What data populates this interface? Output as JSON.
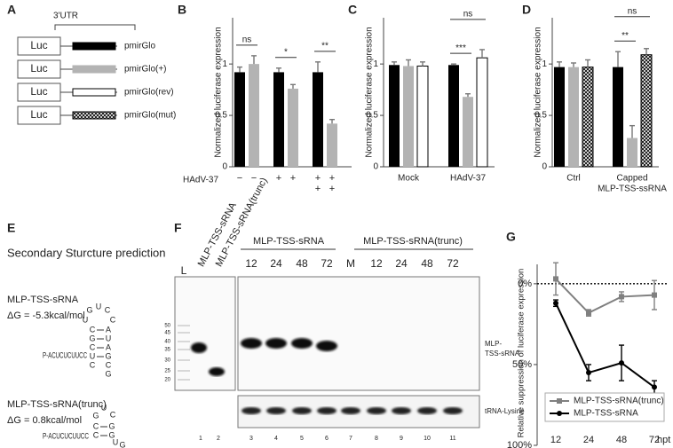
{
  "panel_labels": [
    "A",
    "B",
    "C",
    "D",
    "E",
    "F",
    "G"
  ],
  "constructs": {
    "header": "3'UTR",
    "rows": [
      {
        "reporter": "Luc",
        "name": "pmirGlo",
        "style": "filled",
        "color": "#000000"
      },
      {
        "reporter": "Luc",
        "name": "pmirGlo(+)",
        "style": "filled",
        "color": "#b3b3b3"
      },
      {
        "reporter": "Luc",
        "name": "pmirGlo(rev)",
        "style": "outline",
        "color": "#000000"
      },
      {
        "reporter": "Luc",
        "name": "pmirGlo(mut)",
        "style": "crosshatch",
        "color": "#000000"
      }
    ]
  },
  "chart_data": [
    {
      "type": "bar",
      "ylabel": "Normalized luciferase expression",
      "ylim": [
        0,
        1.45
      ],
      "yticks": [
        0,
        0.5,
        1
      ],
      "series": [
        {
          "color": "#000000",
          "values": [
            0.92,
            0.92,
            0.92
          ],
          "errors": [
            0.05,
            0.04,
            0.1
          ]
        },
        {
          "color": "#b3b3b3",
          "values": [
            1.0,
            0.76,
            0.42
          ],
          "errors": [
            0.08,
            0.04,
            0.04
          ]
        }
      ],
      "xlabel": "HAdV-37",
      "treatment_rows": [
        [
          "−",
          "−",
          "+",
          "+",
          "+",
          "+"
        ],
        [
          null,
          null,
          null,
          null,
          "+",
          "+"
        ]
      ],
      "annotations": [
        "ns",
        "*",
        "**"
      ]
    },
    {
      "type": "bar",
      "ylabel": "Normalized luciferase expression",
      "ylim": [
        0,
        1.45
      ],
      "yticks": [
        0,
        0.5,
        1
      ],
      "categories": [
        [
          "Mock"
        ],
        [
          "HAdV-37"
        ]
      ],
      "series": [
        {
          "color": "#000000",
          "values": [
            0.99,
            0.99
          ],
          "errors": [
            0.03,
            0.01
          ]
        },
        {
          "color": "#b3b3b3",
          "values": [
            0.98,
            0.68
          ],
          "errors": [
            0.06,
            0.03
          ]
        },
        {
          "color": "#ffffff",
          "edgecolor": "#000000",
          "values": [
            0.98,
            1.06
          ],
          "errors": [
            0.04,
            0.08
          ]
        }
      ],
      "annotations": [
        "***",
        "ns"
      ]
    },
    {
      "type": "bar",
      "ylabel": "Normalized luciferase expression",
      "ylim": [
        0,
        1.45
      ],
      "yticks": [
        0,
        0.5,
        1
      ],
      "categories": [
        [
          "Ctrl"
        ],
        [
          "Capped",
          "MLP-TSS-ssRNA"
        ]
      ],
      "series": [
        {
          "color": "#000000",
          "values": [
            0.97,
            0.97
          ],
          "errors": [
            0.05,
            0.15
          ]
        },
        {
          "color": "#b3b3b3",
          "values": [
            0.97,
            0.28
          ],
          "errors": [
            0.04,
            0.12
          ]
        },
        {
          "color": "#ffffff",
          "edgecolor": "#000000",
          "pattern": "crosshatch",
          "values": [
            0.97,
            1.09
          ],
          "errors": [
            0.07,
            0.06
          ]
        }
      ],
      "annotations": [
        "**",
        "ns"
      ]
    },
    {
      "type": "line",
      "ylabel": "Relative suppression of luciferase expression",
      "xlabel": "hpt",
      "categories": [
        12,
        24,
        48,
        72
      ],
      "ylim": [
        -12,
        100
      ],
      "y_inverted": true,
      "yticks": [
        {
          "value": 0,
          "label": "0%"
        },
        {
          "value": 50,
          "label": "50%"
        },
        {
          "value": 100,
          "label": "100%"
        }
      ],
      "reference_line": 0,
      "series": [
        {
          "name": "MLP-TSS-sRNA(trunc)",
          "color": "#808080",
          "marker": "square",
          "values": [
            -3,
            18,
            8,
            7
          ],
          "errors": [
            10,
            2,
            3,
            9
          ]
        },
        {
          "name": "MLP-TSS-sRNA",
          "color": "#000000",
          "marker": "circle",
          "values": [
            12,
            55,
            49,
            64
          ],
          "errors": [
            2,
            5,
            11,
            4
          ]
        }
      ],
      "legend": "lower right"
    }
  ],
  "structure": {
    "title": "Secondary Sturcture prediction",
    "items": [
      {
        "name": "MLP-TSS-sRNA",
        "energy": "ΔG = -5.3kcal/mol",
        "tail": "P-ACUCUCUUCC",
        "loop": [
          "U",
          "G",
          "U",
          "C",
          "C"
        ],
        "stem_left": [
          "C",
          "G",
          "C",
          "U",
          "C"
        ],
        "stem_right": [
          "A",
          "U",
          "A",
          "G",
          "C",
          "G"
        ]
      },
      {
        "name": "MLP-TSS-sRNA(trunc)",
        "energy": "ΔG = 0.8kcal/mol",
        "tail": "P-ACUCUCUUCC",
        "loop": [
          "G",
          "U",
          "C"
        ],
        "stem_left": [
          "C",
          "C"
        ],
        "stem_right": [
          "G",
          "G",
          "U",
          "G"
        ]
      }
    ]
  },
  "gel": {
    "ladder_label": "L",
    "sample_labels": [
      "MLP-TSS-sRNA",
      "MLP-TSS-sRNA(trunc)"
    ],
    "group_labels": [
      "MLP-TSS-sRNA",
      "MLP-TSS-sRNA(trunc)"
    ],
    "lane_labels": [
      "12",
      "24",
      "48",
      "72",
      "M",
      "12",
      "24",
      "48",
      "72"
    ],
    "ladder_sizes": [
      50,
      45,
      40,
      35,
      30,
      25,
      20
    ],
    "band_labels": [
      [
        "MLP-",
        "TSS-sRNA"
      ],
      [
        "tRNA-Lysine"
      ]
    ],
    "lane_numbers": [
      1,
      2,
      3,
      4,
      5,
      6,
      7,
      8,
      9,
      10,
      11
    ]
  }
}
